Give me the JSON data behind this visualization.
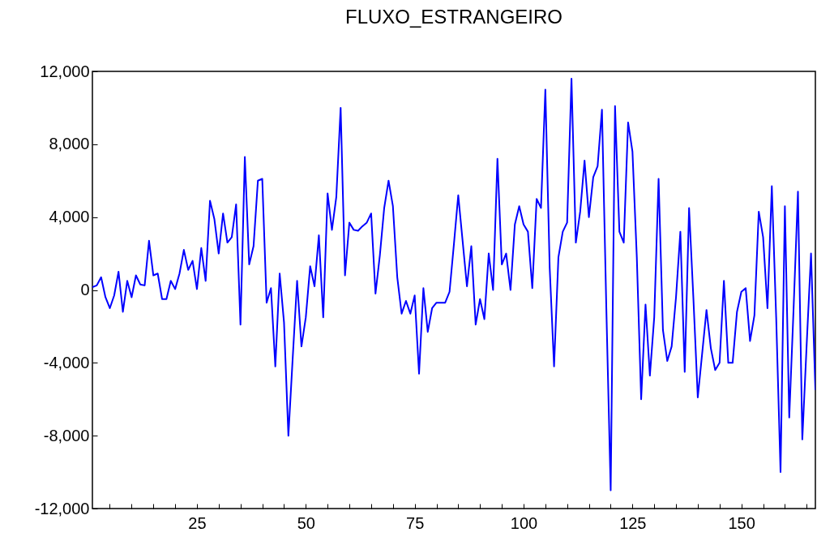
{
  "chart_data": {
    "type": "line",
    "title": "FLUXO_ESTRANGEIRO",
    "x": [
      1,
      2,
      3,
      4,
      5,
      6,
      7,
      8,
      9,
      10,
      11,
      12,
      13,
      14,
      15,
      16,
      17,
      18,
      19,
      20,
      21,
      22,
      23,
      24,
      25,
      26,
      27,
      28,
      29,
      30,
      31,
      32,
      33,
      34,
      35,
      36,
      37,
      38,
      39,
      40,
      41,
      42,
      43,
      44,
      45,
      46,
      47,
      48,
      49,
      50,
      51,
      52,
      53,
      54,
      55,
      56,
      57,
      58,
      59,
      60,
      61,
      62,
      63,
      64,
      65,
      66,
      67,
      68,
      69,
      70,
      71,
      72,
      73,
      74,
      75,
      76,
      77,
      78,
      79,
      80,
      81,
      82,
      83,
      84,
      85,
      86,
      87,
      88,
      89,
      90,
      91,
      92,
      93,
      94,
      95,
      96,
      97,
      98,
      99,
      100,
      101,
      102,
      103,
      104,
      105,
      106,
      107,
      108,
      109,
      110,
      111,
      112,
      113,
      114,
      115,
      116,
      117,
      118,
      119,
      120,
      121,
      122,
      123,
      124,
      125,
      126,
      127,
      128,
      129,
      130,
      131,
      132,
      133,
      134,
      135,
      136,
      137,
      138,
      139,
      140,
      141,
      142,
      143,
      144,
      145,
      146,
      147,
      148,
      149,
      150,
      151,
      152,
      153,
      154,
      155,
      156,
      157,
      158,
      159,
      160,
      161,
      162,
      163,
      164,
      165,
      166,
      167
    ],
    "series": [
      {
        "color": "#0000ff",
        "values": [
          150,
          250,
          700,
          -400,
          -1000,
          -300,
          1000,
          -1200,
          500,
          -400,
          800,
          300,
          250,
          2700,
          800,
          900,
          -500,
          -500,
          500,
          50,
          900,
          2200,
          1100,
          1600,
          50,
          2300,
          500,
          4900,
          3900,
          2000,
          4200,
          2600,
          2900,
          4700,
          -1900,
          7300,
          1400,
          2400,
          6000,
          6100,
          -700,
          100,
          -4200,
          900,
          -1800,
          -8000,
          -3700,
          500,
          -3100,
          -1500,
          1300,
          200,
          3000,
          -1500,
          5300,
          3300,
          5100,
          10000,
          800,
          3700,
          3300,
          3250,
          3500,
          3700,
          4200,
          -200,
          1900,
          4500,
          6000,
          4600,
          700,
          -1300,
          -600,
          -1300,
          -300,
          -4600,
          100,
          -2300,
          -1000,
          -700,
          -700,
          -700,
          -100,
          2500,
          5200,
          2700,
          200,
          2400,
          -1900,
          -500,
          -1600,
          2000,
          0,
          7200,
          1400,
          2000,
          0,
          3600,
          4600,
          3600,
          3200,
          100,
          5000,
          4500,
          11000,
          1200,
          -4200,
          1800,
          3200,
          3700,
          11600,
          2600,
          4300,
          7100,
          4000,
          6200,
          6800,
          9900,
          -1000,
          -11000,
          10100,
          3200,
          2600,
          9200,
          7600,
          1800,
          -6000,
          -800,
          -4700,
          -1500,
          6100,
          -2200,
          -3900,
          -3100,
          -400,
          3200,
          -4500,
          4500,
          -500,
          -5900,
          -3500,
          -1100,
          -3200,
          -4400,
          -4000,
          500,
          -4000,
          -4000,
          -1200,
          -100,
          100,
          -2800,
          -1400,
          4300,
          2900,
          -1000,
          5700,
          -1500,
          -10000,
          4600,
          -7000,
          -1000,
          5400,
          -8200,
          -3000,
          2000,
          -5500
        ]
      }
    ],
    "xlim": [
      1,
      167
    ],
    "xticks": [
      {
        "value": 5,
        "label": null
      },
      {
        "value": 10,
        "label": null
      },
      {
        "value": 15,
        "label": null
      },
      {
        "value": 20,
        "label": null
      },
      25,
      {
        "value": 30,
        "label": null
      },
      {
        "value": 35,
        "label": null
      },
      {
        "value": 40,
        "label": null
      },
      {
        "value": 45,
        "label": null
      },
      50,
      {
        "value": 55,
        "label": null
      },
      {
        "value": 60,
        "label": null
      },
      {
        "value": 65,
        "label": null
      },
      {
        "value": 70,
        "label": null
      },
      75,
      {
        "value": 80,
        "label": null
      },
      {
        "value": 85,
        "label": null
      },
      {
        "value": 90,
        "label": null
      },
      {
        "value": 95,
        "label": null
      },
      100,
      {
        "value": 105,
        "label": null
      },
      {
        "value": 110,
        "label": null
      },
      {
        "value": 115,
        "label": null
      },
      {
        "value": 120,
        "label": null
      },
      125,
      {
        "value": 130,
        "label": null
      },
      {
        "value": 135,
        "label": null
      },
      {
        "value": 140,
        "label": null
      },
      {
        "value": 145,
        "label": null
      },
      150,
      {
        "value": 155,
        "label": null
      },
      {
        "value": 160,
        "label": null
      },
      {
        "value": 165,
        "label": null
      }
    ],
    "ylim": [
      -12000,
      12000
    ],
    "yticks": [
      {
        "value": -12000,
        "label": "-12,000"
      },
      {
        "value": -8000,
        "label": "-8,000"
      },
      {
        "value": -4000,
        "label": "-4,000"
      },
      {
        "value": 0,
        "label": "0"
      },
      {
        "value": 4000,
        "label": "4,000"
      },
      {
        "value": 8000,
        "label": "8,000"
      },
      {
        "value": 12000,
        "label": "12,000"
      }
    ],
    "grid": false,
    "line_style": "solid"
  }
}
